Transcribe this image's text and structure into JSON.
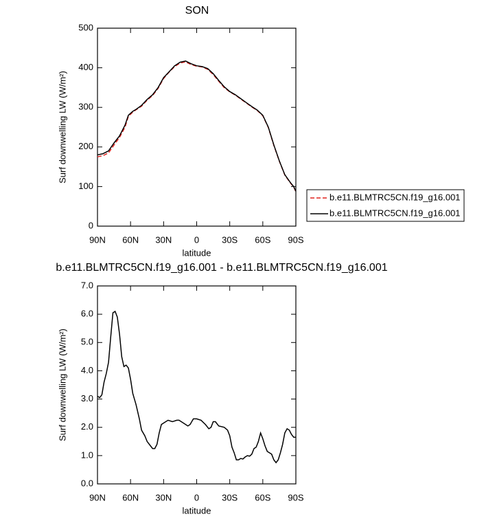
{
  "chart_data": [
    {
      "type": "line",
      "title": "SON",
      "xlabel": "latitude",
      "ylabel": "Surf downwelling LW (W/m²)",
      "x": [
        90,
        85,
        80,
        75,
        70,
        65,
        62,
        58,
        55,
        50,
        45,
        40,
        35,
        30,
        25,
        20,
        15,
        10,
        5,
        0,
        -5,
        -10,
        -15,
        -20,
        -25,
        -30,
        -35,
        -40,
        -45,
        -50,
        -55,
        -60,
        -65,
        -70,
        -75,
        -80,
        -85,
        -88,
        -90
      ],
      "series": [
        {
          "name": "b.e11.BLMTRC5CN.f19_g16.001",
          "color": "#e0201b",
          "dash": "dashed",
          "values": [
            175,
            178,
            185,
            205,
            224,
            250,
            277,
            288,
            294,
            303,
            318,
            330,
            348,
            373,
            389,
            403,
            412,
            415,
            408,
            404,
            402,
            396,
            383,
            366,
            350,
            339,
            331,
            321,
            311,
            301,
            292,
            279,
            249,
            204,
            164,
            129,
            109,
            99,
            87
          ]
        },
        {
          "name": "b.e11.BLMTRC5CN.f19_g16.001",
          "color": "#000000",
          "dash": "solid",
          "values": [
            180,
            183,
            190,
            210,
            228,
            255,
            280,
            290,
            295,
            305,
            320,
            332,
            350,
            375,
            390,
            405,
            414,
            417,
            410,
            405,
            403,
            398,
            385,
            368,
            352,
            340,
            332,
            322,
            312,
            302,
            293,
            280,
            250,
            205,
            165,
            130,
            110,
            100,
            88
          ]
        }
      ],
      "xlim": [
        90,
        -90
      ],
      "xticks": [
        {
          "value": 90,
          "label": "90N"
        },
        {
          "value": 60,
          "label": "60N"
        },
        {
          "value": 30,
          "label": "30N"
        },
        0,
        {
          "value": -30,
          "label": "30S"
        },
        {
          "value": -60,
          "label": "60S"
        },
        {
          "value": -90,
          "label": "90S"
        }
      ],
      "ylim": [
        0,
        500
      ],
      "yticks": [
        0,
        100,
        200,
        300,
        400,
        500
      ],
      "legend": "outside-right"
    },
    {
      "type": "line",
      "title": "b.e11.BLMTRC5CN.f19_g16.001 - b.e11.BLMTRC5CN.f19_g16.001",
      "xlabel": "latitude",
      "ylabel": "Surf downwelling LW (W/m²)",
      "x": [
        90,
        88,
        86,
        84,
        82,
        80,
        78,
        76,
        74,
        72,
        70,
        68,
        66,
        64,
        62,
        60,
        58,
        55,
        52,
        50,
        47,
        45,
        42,
        40,
        38,
        36,
        34,
        32,
        30,
        26,
        22,
        18,
        16,
        12,
        8,
        6,
        3,
        0,
        -4,
        -8,
        -11,
        -13,
        -15,
        -17,
        -20,
        -25,
        -28,
        -30,
        -32,
        -34,
        -36,
        -38,
        -40,
        -42,
        -44,
        -46,
        -48,
        -50,
        -52,
        -54,
        -56,
        -58,
        -60,
        -62,
        -64,
        -66,
        -68,
        -70,
        -72,
        -74,
        -76,
        -78,
        -80,
        -82,
        -84,
        -86,
        -88,
        -90
      ],
      "series": [
        {
          "color": "#000000",
          "dash": "solid",
          "values": [
            3.1,
            3.05,
            3.15,
            3.6,
            3.9,
            4.3,
            5.2,
            6.05,
            6.1,
            5.9,
            5.3,
            4.5,
            4.15,
            4.2,
            4.1,
            3.7,
            3.2,
            2.8,
            2.3,
            1.9,
            1.7,
            1.5,
            1.35,
            1.25,
            1.25,
            1.4,
            1.8,
            2.1,
            2.15,
            2.25,
            2.2,
            2.25,
            2.25,
            2.15,
            2.05,
            2.1,
            2.3,
            2.3,
            2.25,
            2.1,
            1.95,
            2.0,
            2.2,
            2.2,
            2.05,
            2.0,
            1.9,
            1.7,
            1.3,
            1.1,
            0.85,
            0.85,
            0.9,
            0.88,
            0.95,
            1.0,
            0.98,
            1.05,
            1.25,
            1.3,
            1.5,
            1.8,
            1.6,
            1.35,
            1.15,
            1.1,
            1.05,
            0.85,
            0.75,
            0.85,
            1.1,
            1.4,
            1.8,
            1.95,
            1.9,
            1.75,
            1.65,
            1.65
          ]
        }
      ],
      "xlim": [
        90,
        -90
      ],
      "xticks": [
        {
          "value": 90,
          "label": "90N"
        },
        {
          "value": 60,
          "label": "60N"
        },
        {
          "value": 30,
          "label": "30N"
        },
        0,
        {
          "value": -30,
          "label": "30S"
        },
        {
          "value": -60,
          "label": "60S"
        },
        {
          "value": -90,
          "label": "90S"
        }
      ],
      "ylim": [
        0,
        7
      ],
      "yticks": [
        {
          "value": 0,
          "label": "0.0"
        },
        {
          "value": 1,
          "label": "1.0"
        },
        {
          "value": 2,
          "label": "2.0"
        },
        {
          "value": 3,
          "label": "3.0"
        },
        {
          "value": 4,
          "label": "4.0"
        },
        {
          "value": 5,
          "label": "5.0"
        },
        {
          "value": 6,
          "label": "6.0"
        },
        {
          "value": 7,
          "label": "7.0"
        }
      ]
    }
  ]
}
